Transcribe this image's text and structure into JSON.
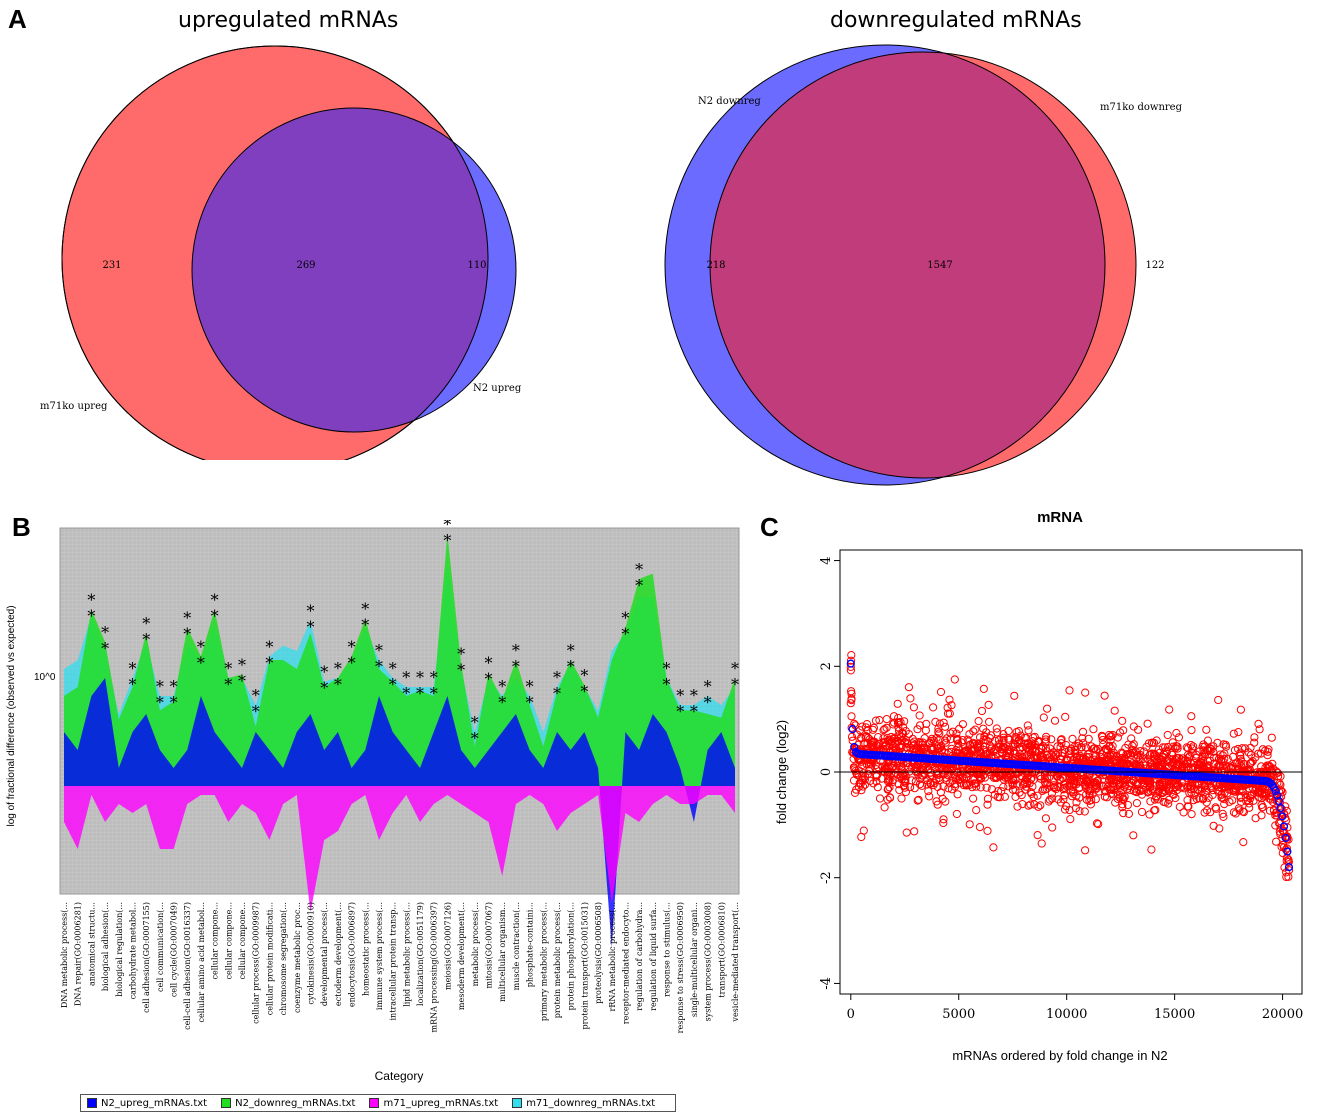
{
  "panels": {
    "a": "A",
    "b": "B",
    "c": "C"
  },
  "chart_data": [
    {
      "type": "venn",
      "title": "upregulated mRNAs",
      "sets": [
        {
          "name": "m71ko upreg",
          "only": 231,
          "color": "#ff6b6b"
        },
        {
          "name": "N2 upreg",
          "only": 110,
          "color": "#6b6bff"
        }
      ],
      "intersection": 269,
      "intersection_color": "#7f3fbf"
    },
    {
      "type": "venn",
      "title": "downregulated mRNAs",
      "sets": [
        {
          "name": "N2 downreg",
          "only": 218,
          "color": "#6b6bff"
        },
        {
          "name": "m71ko downreg",
          "only": 122,
          "color": "#ff6b6b"
        }
      ],
      "intersection": 1547,
      "intersection_color": "#c03c7a"
    },
    {
      "type": "area",
      "xlabel": "Category",
      "ylabel": "log of fractional difference (observed vs expected)",
      "ytick": "10^0",
      "grid": true,
      "categories": [
        "DNA metabolic process(...",
        "DNA repair(GO:0006281)",
        "anatomical structu...",
        "biological adhesion(...",
        "biological regulation(...",
        "carbohydrate metabol...",
        "cell adhesion(GO:0007155)",
        "cell communication(...",
        "cell cycle(GO:0007049)",
        "cell-cell adhesion(GO:0016337)",
        "cellular amino acid metabol...",
        "cellular compone...",
        "cellular compone...",
        "cellular compone...",
        "cellular process(GO:0009987)",
        "cellular protein modificati...",
        "chromosome segregation(...",
        "coenzyme metabolic proc...",
        "cytokinesis(GO:0000910)",
        "developmental process(...",
        "ectoderm development(...",
        "endocytosis(GO:0006897)",
        "homeostatic process(...",
        "immune system process(...",
        "intracellular protein transp...",
        "lipid metabolic process(...",
        "localization(GO:0051179)",
        "mRNA processing(GO:0006397)",
        "meiosis(GO:0007126)",
        "mesoderm development(...",
        "metabolic process(...",
        "mitosis(GO:0007067)",
        "multicellular organism...",
        "muscle contraction(...",
        "phosphate-containi...",
        "primary metabolic process(...",
        "protein metabolic process(...",
        "protein phosphorylation(...",
        "protein transport(GO:0015031)",
        "proteolysis(GO:0006508)",
        "rRNA metabolic process(...",
        "receptor-mediated endocyto...",
        "regulation of carbohydra...",
        "regulation of liquid surfa...",
        "response to stimulus(...",
        "response to stress(GO:0006950)",
        "single-multicellular organi...",
        "system process(GO:0003008)",
        "transport(GO:0006810)",
        "vesicle-mediated transport(..."
      ],
      "series": [
        {
          "name": "N2_upreg_mRNAs.txt",
          "color": "#0000ff",
          "values": [
            0.3,
            0.2,
            0.5,
            0.6,
            0.1,
            0.3,
            0.4,
            0.2,
            0.1,
            0.2,
            0.5,
            0.3,
            0.2,
            0.1,
            0.3,
            0.2,
            0.1,
            0.3,
            0.4,
            0.2,
            0.3,
            0.1,
            0.2,
            0.5,
            0.3,
            0.2,
            0.1,
            0.3,
            0.5,
            0.2,
            0.1,
            0.2,
            0.3,
            0.4,
            0.2,
            0.1,
            0.3,
            0.2,
            0.3,
            0.1,
            -0.9,
            0.3,
            0.2,
            0.4,
            0.3,
            0.1,
            -0.2,
            0.2,
            0.3,
            0.1
          ]
        },
        {
          "name": "N2_downreg_mRNAs.txt",
          "color": "#22dd22",
          "values": [
            0.5,
            0.55,
            0.98,
            0.8,
            0.37,
            0.55,
            0.85,
            0.42,
            0.47,
            0.88,
            0.72,
            0.98,
            0.6,
            0.62,
            0.33,
            0.7,
            0.7,
            0.65,
            0.85,
            0.55,
            0.6,
            0.72,
            0.93,
            0.65,
            0.58,
            0.5,
            0.53,
            0.5,
            1.4,
            0.68,
            0.22,
            0.63,
            0.48,
            0.7,
            0.45,
            0.22,
            0.52,
            0.7,
            0.56,
            0.38,
            0.7,
            0.88,
            1.15,
            1.18,
            0.6,
            0.42,
            0.42,
            0.4,
            0.38,
            0.6
          ]
        },
        {
          "name": "m71_upreg_mRNAs.txt",
          "color": "#ff00ff",
          "values": [
            -0.2,
            -0.35,
            -0.05,
            -0.2,
            -0.1,
            -0.15,
            -0.1,
            -0.35,
            -0.35,
            -0.1,
            -0.05,
            -0.05,
            -0.2,
            -0.1,
            -0.15,
            -0.3,
            -0.1,
            -0.05,
            -0.7,
            -0.3,
            -0.25,
            -0.1,
            -0.05,
            -0.3,
            -0.15,
            -0.05,
            -0.2,
            -0.1,
            -0.05,
            -0.1,
            -0.15,
            -0.2,
            -0.5,
            -0.1,
            -0.05,
            -0.1,
            -0.25,
            -0.15,
            -0.1,
            -0.05,
            -0.65,
            -0.15,
            -0.2,
            -0.1,
            -0.05,
            -0.1,
            -0.1,
            -0.05,
            -0.05,
            -0.15
          ]
        },
        {
          "name": "m71_downreg_mRNAs.txt",
          "color": "#33ddee",
          "values": [
            0.65,
            0.7,
            0.95,
            0.75,
            0.4,
            0.6,
            0.8,
            0.5,
            0.5,
            0.8,
            0.7,
            0.9,
            0.6,
            0.6,
            0.45,
            0.72,
            0.78,
            0.75,
            0.92,
            0.58,
            0.6,
            0.7,
            0.88,
            0.7,
            0.6,
            0.55,
            0.55,
            0.55,
            1.25,
            0.65,
            0.3,
            0.6,
            0.5,
            0.6,
            0.5,
            0.3,
            0.55,
            0.68,
            0.55,
            0.42,
            0.75,
            0.85,
            1.05,
            1.05,
            0.6,
            0.45,
            0.45,
            0.5,
            0.45,
            0.55
          ]
        }
      ],
      "stars": [
        2,
        3,
        5,
        6,
        7,
        8,
        9,
        10,
        11,
        12,
        13,
        14,
        15,
        18,
        19,
        20,
        21,
        22,
        23,
        24,
        25,
        26,
        27,
        28,
        29,
        30,
        31,
        32,
        33,
        34,
        36,
        37,
        38,
        41,
        42,
        44,
        45,
        46,
        47,
        49
      ]
    },
    {
      "type": "scatter",
      "title": "mRNA",
      "xlabel": "mRNAs ordered by fold change in N2",
      "ylabel": "fold change (log2)",
      "xlim": [
        -500,
        20900
      ],
      "ylim": [
        -4.2,
        4.2
      ],
      "xticks": [
        0,
        5000,
        10000,
        15000,
        20000
      ],
      "yticks": [
        -4,
        -2,
        0,
        2,
        4
      ],
      "n_points": 20300,
      "series": [
        {
          "name": "",
          "color": "#ff0000",
          "style": "open-circle"
        },
        {
          "name": "",
          "color": "#0000ff",
          "style": "open-circle"
        }
      ]
    }
  ]
}
